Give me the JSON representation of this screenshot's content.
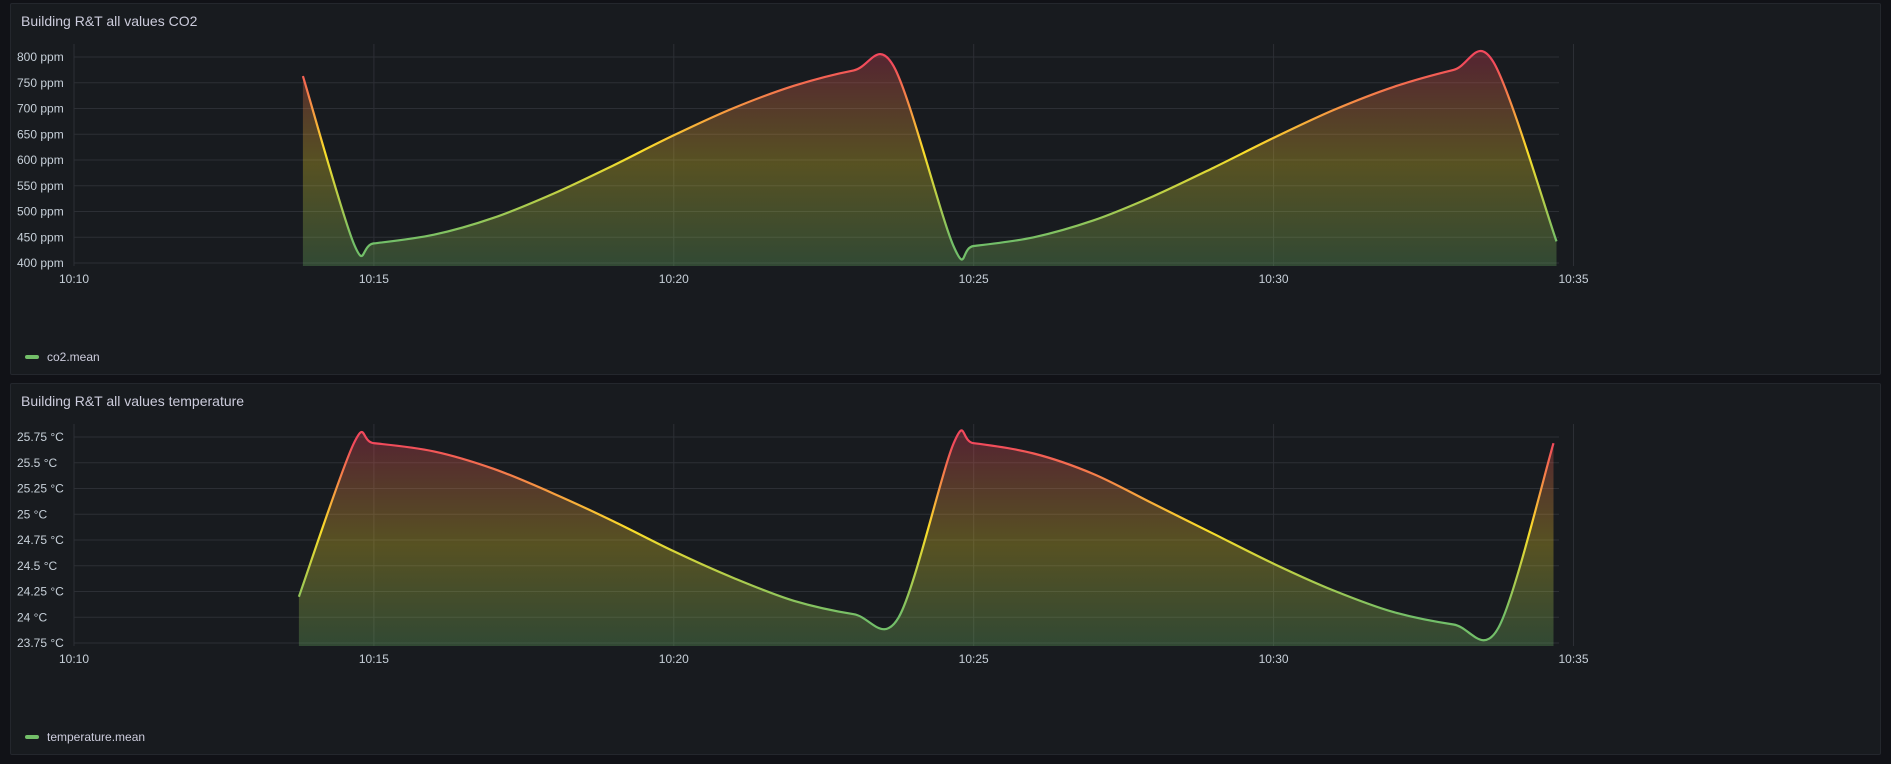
{
  "panels": [
    {
      "title": "Building R&T all values CO2",
      "legend": "co2.mean"
    },
    {
      "title": "Building R&T all values temperature",
      "legend": "temperature.mean"
    }
  ],
  "colors": {
    "legend_swatch": "#73bf69",
    "low": "#73bf69",
    "mid": "#fade2a",
    "high": "#f2495c",
    "grid": "#2c2f35",
    "axis_text": "#c7d0d9"
  },
  "chart_data": [
    {
      "type": "line",
      "title": "Building R&T all values CO2",
      "series": [
        {
          "name": "co2.mean",
          "x": [
            "10:13:49",
            "10:14:40",
            "10:15:00",
            "10:16:00",
            "10:17:00",
            "10:18:00",
            "10:19:00",
            "10:20:00",
            "10:21:00",
            "10:22:00",
            "10:23:00",
            "10:23:40",
            "10:24:40",
            "10:25:00",
            "10:26:00",
            "10:27:00",
            "10:28:00",
            "10:29:00",
            "10:30:00",
            "10:31:00",
            "10:32:00",
            "10:33:00",
            "10:33:40",
            "10:34:43"
          ],
          "values": [
            763,
            437,
            438,
            455,
            488,
            535,
            590,
            648,
            701,
            744,
            774,
            782,
            432,
            433,
            450,
            483,
            530,
            585,
            643,
            697,
            742,
            775,
            790,
            442
          ]
        }
      ],
      "xticks": [
        "10:10",
        "10:15",
        "10:20",
        "10:25",
        "10:30",
        "10:35"
      ],
      "yticks": [
        "400 ppm",
        "450 ppm",
        "500 ppm",
        "550 ppm",
        "600 ppm",
        "650 ppm",
        "700 ppm",
        "750 ppm",
        "800 ppm"
      ],
      "x_range": [
        "10:10",
        "10:35"
      ],
      "ylim": [
        400,
        800
      ],
      "grid": true,
      "gradient_thresholds": [
        440,
        610,
        790
      ],
      "legend_position": "bottom-left"
    },
    {
      "type": "line",
      "title": "Building R&T all values temperature",
      "series": [
        {
          "name": "temperature.mean",
          "x": [
            "10:13:45",
            "10:14:40",
            "10:15:00",
            "10:16:00",
            "10:17:00",
            "10:18:00",
            "10:19:00",
            "10:20:00",
            "10:21:00",
            "10:22:00",
            "10:23:00",
            "10:23:45",
            "10:24:40",
            "10:25:00",
            "10:26:00",
            "10:27:00",
            "10:28:00",
            "10:29:00",
            "10:30:00",
            "10:31:00",
            "10:32:00",
            "10:33:00",
            "10:33:45",
            "10:34:40"
          ],
          "values": [
            24.2,
            25.69,
            25.69,
            25.61,
            25.44,
            25.2,
            24.93,
            24.64,
            24.38,
            24.16,
            24.03,
            24.0,
            25.69,
            25.69,
            25.59,
            25.39,
            25.1,
            24.81,
            24.52,
            24.26,
            24.05,
            23.93,
            23.9,
            25.69
          ]
        }
      ],
      "xticks": [
        "10:10",
        "10:15",
        "10:20",
        "10:25",
        "10:30",
        "10:35"
      ],
      "yticks": [
        "23.75 °C",
        "24 °C",
        "24.25 °C",
        "24.5 °C",
        "24.75 °C",
        "25 °C",
        "25.25 °C",
        "25.5 °C",
        "25.75 °C"
      ],
      "x_range": [
        "10:10",
        "10:35"
      ],
      "ylim": [
        23.75,
        25.75
      ],
      "grid": true,
      "gradient_thresholds": [
        24.0,
        24.7,
        25.69
      ],
      "legend_position": "bottom-left"
    }
  ]
}
